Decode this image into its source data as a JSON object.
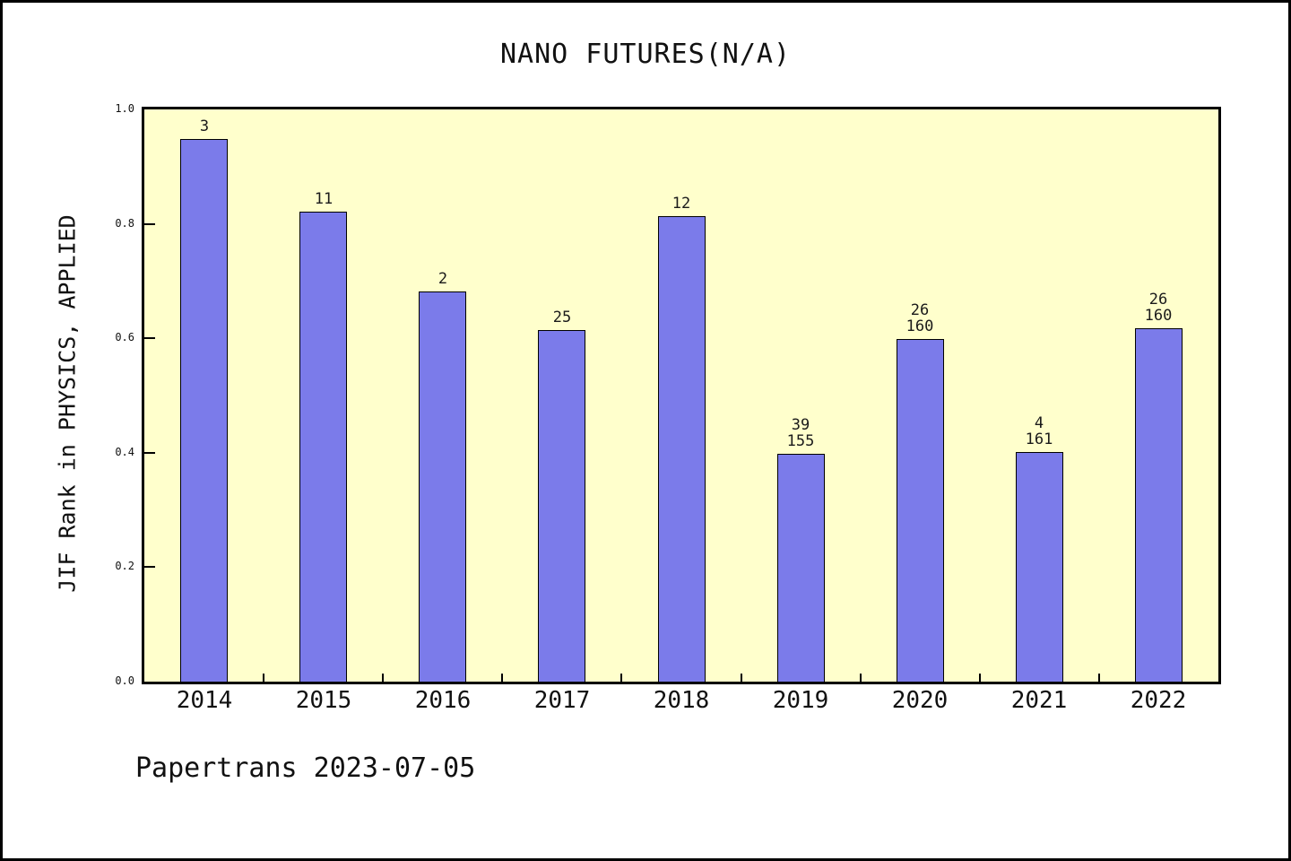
{
  "title": "NANO FUTURES(N/A)",
  "y_axis_label": "JIF Rank in PHYSICS, APPLIED",
  "footer": "Papertrans 2023-07-05",
  "colors": {
    "bar_fill": "#7b7bea",
    "bar_edge": "#000000",
    "plot_background": "#ffffcc",
    "frame_border": "#000000",
    "text": "#111111"
  },
  "chart_data": {
    "type": "bar",
    "title": "NANO FUTURES(N/A)",
    "xlabel": "",
    "ylabel": "JIF Rank in PHYSICS, APPLIED",
    "categories": [
      "2014",
      "2015",
      "2016",
      "2017",
      "2018",
      "2019",
      "2020",
      "2021",
      "2022"
    ],
    "values": [
      0.948,
      0.822,
      0.682,
      0.614,
      0.813,
      0.398,
      0.598,
      0.401,
      0.618
    ],
    "bar_labels": [
      [
        "3"
      ],
      [
        "11"
      ],
      [
        "2"
      ],
      [
        "25"
      ],
      [
        "12"
      ],
      [
        "39",
        "155"
      ],
      [
        "26",
        "160"
      ],
      [
        "4",
        "161"
      ],
      [
        "26",
        "160"
      ]
    ],
    "ylim": [
      0.0,
      1.0
    ],
    "yticks": [
      0.0,
      0.2,
      0.4,
      0.6,
      0.8,
      1.0
    ],
    "ytick_labels": [
      "0.0",
      "0.2",
      "0.4",
      "0.6",
      "0.8",
      "1.0"
    ],
    "grid": false,
    "legend_position": "none",
    "bar_width_fraction": 0.4
  }
}
